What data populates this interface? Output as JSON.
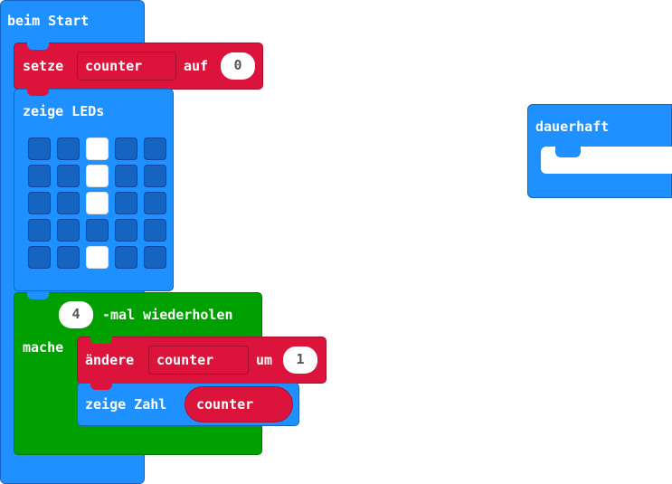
{
  "colors": {
    "basic_blue": "#1e90ff",
    "variables_red": "#dc143c",
    "loops_green": "#00a000",
    "led_off": "#1565c0",
    "led_on": "#ffffff"
  },
  "on_start": {
    "label": "beim Start"
  },
  "set_block": {
    "label": "setze",
    "variable": "counter",
    "to_label": "auf",
    "value": "0"
  },
  "show_leds": {
    "label": "zeige LEDs",
    "grid": [
      [
        0,
        0,
        1,
        0,
        0
      ],
      [
        0,
        0,
        1,
        0,
        0
      ],
      [
        0,
        0,
        1,
        0,
        0
      ],
      [
        0,
        0,
        0,
        0,
        0
      ],
      [
        0,
        0,
        1,
        0,
        0
      ]
    ]
  },
  "repeat_block": {
    "count": "4",
    "label": "-mal wiederholen",
    "do_label": "mache"
  },
  "change_block": {
    "label": "ändere",
    "variable": "counter",
    "by_label": "um",
    "value": "1"
  },
  "show_number": {
    "label": "zeige Zahl",
    "variable": "counter"
  },
  "forever": {
    "label": "dauerhaft"
  }
}
